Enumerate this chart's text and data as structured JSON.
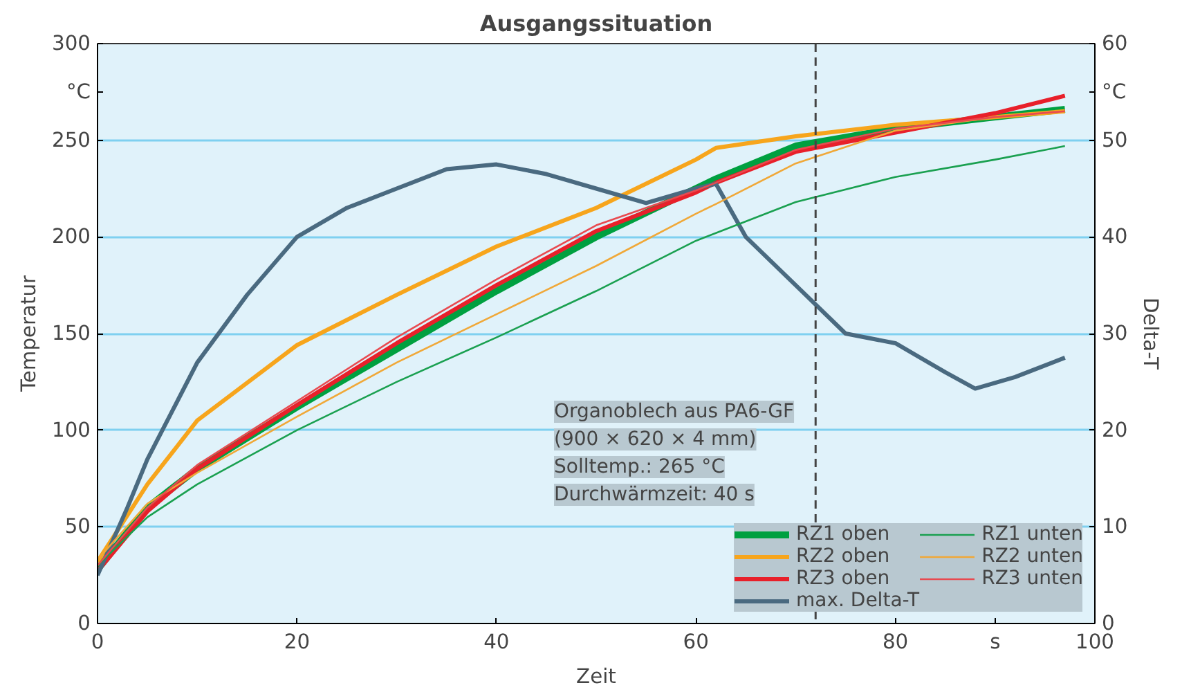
{
  "chart_data": {
    "type": "line",
    "title": "Ausgangssituation",
    "xlabel": "Zeit",
    "ylabel": "Temperatur",
    "y2label": "Delta-T",
    "xlim": [
      0,
      100
    ],
    "xticks": [
      0,
      20,
      40,
      60,
      80,
      {
        "value": 90,
        "label": "s"
      },
      100
    ],
    "ylim": [
      0,
      300
    ],
    "yticks": [
      0,
      50,
      100,
      150,
      200,
      250,
      {
        "value": 275,
        "label": "°C"
      },
      300
    ],
    "y2lim": [
      0,
      60
    ],
    "y2ticks": [
      0,
      10,
      20,
      30,
      40,
      50,
      {
        "value": 55,
        "label": "°C"
      },
      60
    ],
    "grid": "y",
    "legend": "bottom right",
    "annotations": [
      "Organoblech aus PA6-GF",
      "(900 × 620 × 4 mm)",
      "Solltemp.: 265 °C",
      "Durchwärmzeit: 40 s"
    ],
    "ref_lines": [
      {
        "axis": "x",
        "value": 72,
        "label": null,
        "color": "#444444",
        "line_style": "dashed"
      }
    ],
    "x": [
      0,
      5,
      10,
      20,
      30,
      40,
      50,
      60,
      62,
      70,
      80,
      90,
      97
    ],
    "series": [
      {
        "name": "RZ1 oben",
        "color": "#00a040",
        "values": [
          28,
          60,
          80,
          112,
          142,
          172,
          200,
          225,
          230,
          247,
          256,
          262,
          266
        ]
      },
      {
        "name": "RZ2 oben",
        "color": "#f7a51c",
        "values": [
          32,
          72,
          105,
          144,
          170,
          195,
          215,
          240,
          246,
          252,
          258,
          262,
          265
        ]
      },
      {
        "name": "RZ3 oben",
        "color": "#e8202a",
        "values": [
          27,
          58,
          80,
          113,
          145,
          175,
          203,
          223,
          228,
          244,
          254,
          264,
          273
        ]
      },
      {
        "name": "max. Delta-T",
        "color": "#4a6a80",
        "axis": "y2",
        "x": [
          0,
          3,
          5,
          10,
          15,
          20,
          25,
          30,
          35,
          40,
          45,
          50,
          55,
          60,
          62,
          65,
          70,
          75,
          80,
          85,
          88,
          92,
          97
        ],
        "values": [
          5,
          12,
          17,
          27,
          34,
          40,
          43,
          45,
          47,
          47.5,
          46.5,
          45,
          43.5,
          45,
          45.5,
          40,
          35,
          30,
          29,
          26,
          24.3,
          25.5,
          27.5
        ]
      },
      {
        "name": "RZ1 unten",
        "color": "#1aa050",
        "values": [
          30,
          55,
          72,
          100,
          125,
          148,
          172,
          198,
          202,
          218,
          231,
          240,
          247
        ]
      },
      {
        "name": "RZ2 unten",
        "color": "#f0a838",
        "values": [
          33,
          62,
          78,
          107,
          135,
          160,
          185,
          212,
          217,
          238,
          255,
          262,
          265
        ]
      },
      {
        "name": "RZ3 unten",
        "color": "#e84a50",
        "values": [
          30,
          60,
          82,
          115,
          148,
          178,
          206,
          224,
          228,
          245,
          256,
          262,
          265
        ]
      }
    ]
  }
}
